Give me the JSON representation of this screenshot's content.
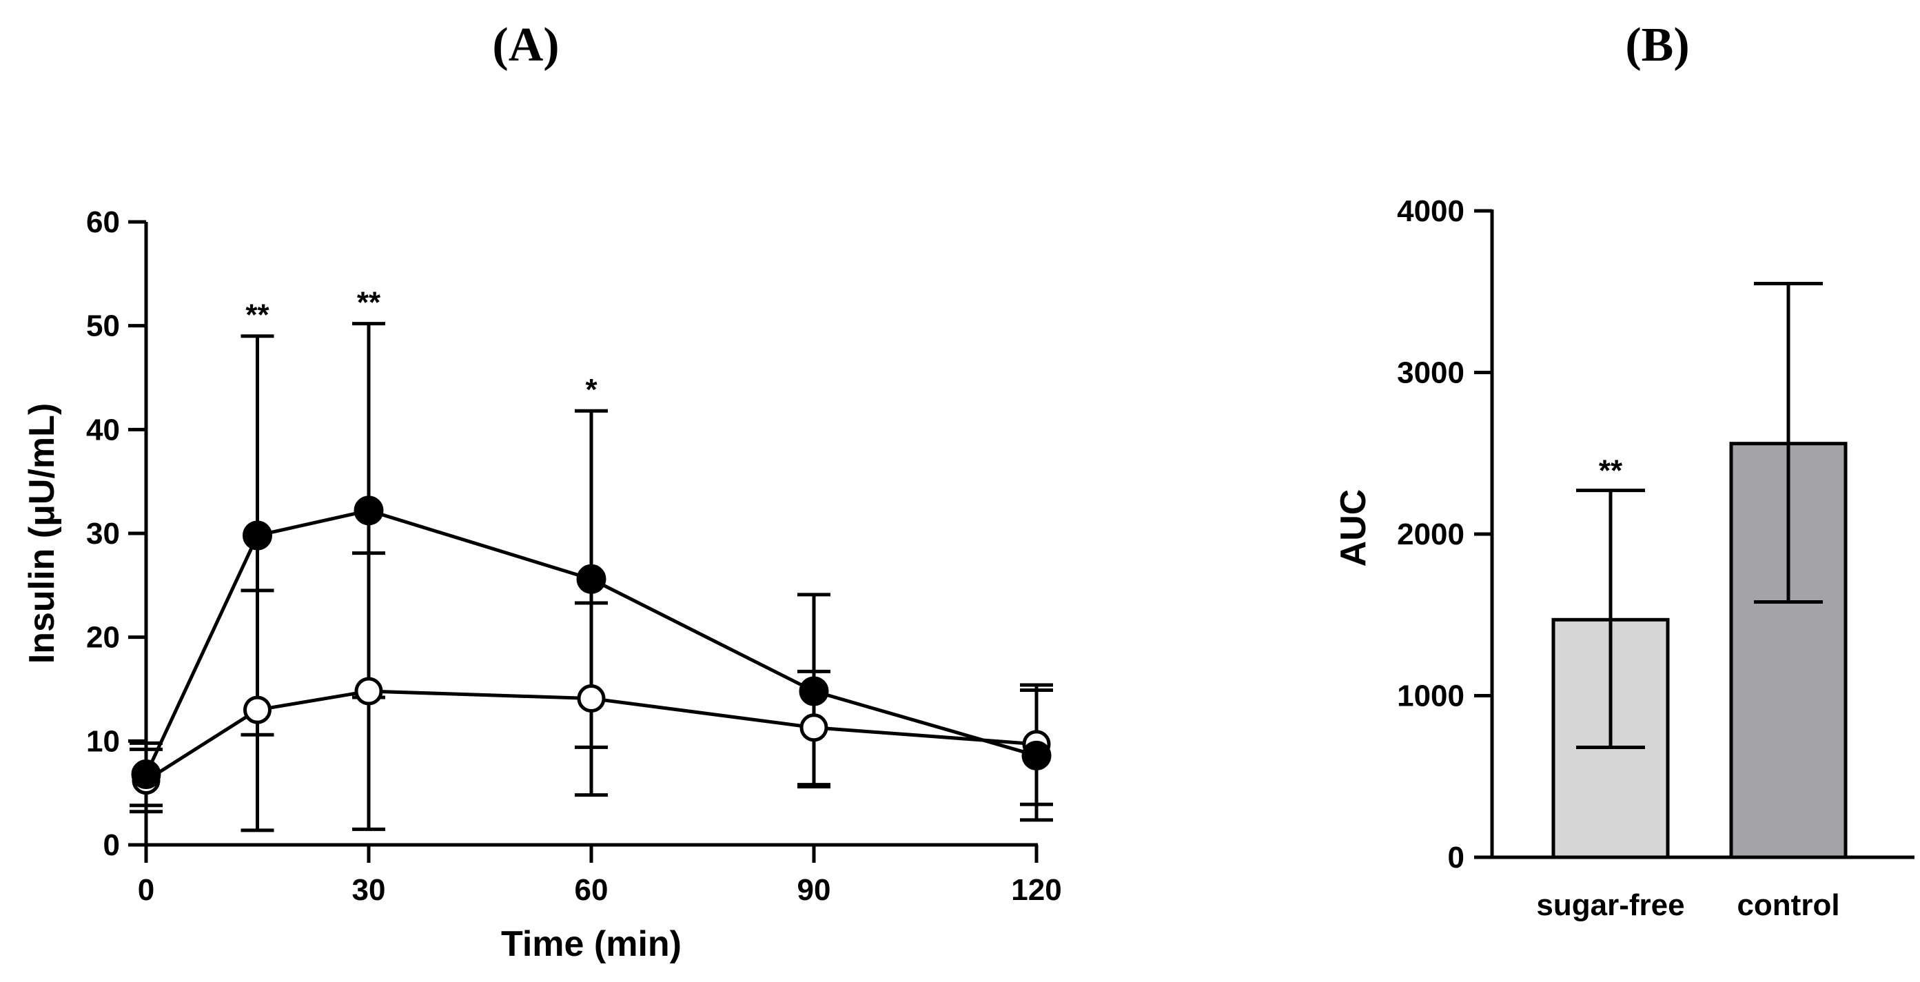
{
  "chart_data": [
    {
      "panel_label": "(A)",
      "type": "line",
      "xlabel": "Time (min)",
      "ylabel": "Insulin (μU/mL)",
      "xlim": [
        0,
        120
      ],
      "ylim": [
        0,
        60
      ],
      "x_ticks": [
        {
          "value": 0,
          "label": "0"
        },
        {
          "value": 30,
          "label": "30"
        },
        {
          "value": 60,
          "label": "60"
        },
        {
          "value": 90,
          "label": "90"
        },
        {
          "value": 120,
          "label": "120"
        }
      ],
      "y_ticks": [
        {
          "value": 0,
          "label": "0"
        },
        {
          "value": 10,
          "label": "10"
        },
        {
          "value": 20,
          "label": "20"
        },
        {
          "value": 30,
          "label": "30"
        },
        {
          "value": 40,
          "label": "40"
        },
        {
          "value": 50,
          "label": "50"
        },
        {
          "value": 60,
          "label": "60"
        }
      ],
      "x": [
        0,
        15,
        30,
        60,
        90,
        120
      ],
      "series": [
        {
          "name": "filled circles",
          "marker": "filled-circle",
          "values": [
            6.8,
            29.8,
            32.2,
            25.6,
            14.8,
            8.6
          ],
          "err_low": [
            3.8,
            10.6,
            14.2,
            9.4,
            5.8,
            2.4
          ],
          "err_high": [
            9.8,
            49.0,
            50.2,
            41.8,
            24.1,
            14.9
          ]
        },
        {
          "name": "open circles",
          "marker": "open-circle",
          "values": [
            6.2,
            13.0,
            14.8,
            14.1,
            11.3,
            9.7
          ],
          "err_low": [
            3.2,
            1.4,
            1.5,
            4.8,
            5.6,
            3.9
          ],
          "err_high": [
            9.2,
            24.5,
            28.1,
            23.3,
            16.7,
            15.4
          ]
        }
      ],
      "annotations": [
        {
          "x": 15,
          "text": "**"
        },
        {
          "x": 30,
          "text": "**"
        },
        {
          "x": 60,
          "text": "*"
        }
      ]
    },
    {
      "panel_label": "(B)",
      "type": "bar",
      "xlabel": "",
      "ylabel": "AUC",
      "ylim": [
        0,
        4000
      ],
      "y_ticks": [
        {
          "value": 0,
          "label": "0"
        },
        {
          "value": 1000,
          "label": "1000"
        },
        {
          "value": 2000,
          "label": "2000"
        },
        {
          "value": 3000,
          "label": "3000"
        },
        {
          "value": 4000,
          "label": "4000"
        }
      ],
      "categories": [
        "sugar-free",
        "control"
      ],
      "values": [
        1470,
        2560
      ],
      "err_low": [
        680,
        1580
      ],
      "err_high": [
        2270,
        3550
      ],
      "bar_colors": [
        "#d6d6d6",
        "#a4a3a7"
      ],
      "annotations": [
        {
          "category": "sugar-free",
          "text": "**"
        }
      ]
    }
  ]
}
